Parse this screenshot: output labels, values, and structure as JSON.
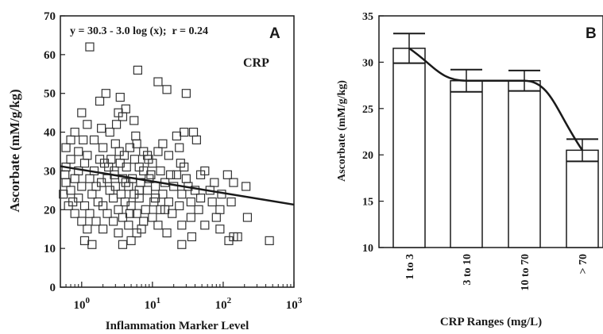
{
  "chart_data": [
    {
      "panel_label": "A",
      "type": "scatter",
      "equation": "y = 30.3 - 3.0 log (x);  r = 0.24",
      "inset_label": "CRP",
      "xlabel": "Inflammation Marker Level",
      "ylabel": "Ascorbate (mM/g/kg)",
      "x_scale": "log",
      "xlim": [
        0.5,
        1000
      ],
      "ylim": [
        0,
        70
      ],
      "y_ticks": [
        "0",
        "10",
        "20",
        "30",
        "40",
        "50",
        "60",
        "70"
      ],
      "x_ticks": [
        {
          "base": "10",
          "exp": "0",
          "value": 1
        },
        {
          "base": "10",
          "exp": "1",
          "value": 10
        },
        {
          "base": "10",
          "exp": "2",
          "value": 100
        },
        {
          "base": "10",
          "exp": "3",
          "value": 1000
        }
      ],
      "fit_line": {
        "intercept": 30.3,
        "slope_log10": -3.0,
        "x_range": [
          0.5,
          1000
        ]
      },
      "points": [
        [
          1.3,
          62
        ],
        [
          6.2,
          56
        ],
        [
          12,
          53
        ],
        [
          30,
          50
        ],
        [
          2.2,
          50
        ],
        [
          3.5,
          49
        ],
        [
          1.8,
          48
        ],
        [
          16,
          51
        ],
        [
          3.3,
          45
        ],
        [
          4.2,
          46
        ],
        [
          3.8,
          44
        ],
        [
          5.5,
          43
        ],
        [
          1.0,
          45
        ],
        [
          1.2,
          42
        ],
        [
          1.9,
          41
        ],
        [
          0.8,
          40
        ],
        [
          2.5,
          40
        ],
        [
          22,
          39
        ],
        [
          28,
          40
        ],
        [
          38,
          40
        ],
        [
          42,
          38
        ],
        [
          0.7,
          38
        ],
        [
          1.5,
          38
        ],
        [
          3.0,
          37
        ],
        [
          6,
          37
        ],
        [
          14,
          37
        ],
        [
          2.0,
          36
        ],
        [
          0.6,
          36
        ],
        [
          0.9,
          35
        ],
        [
          3.4,
          35
        ],
        [
          4.8,
          36
        ],
        [
          7.5,
          35
        ],
        [
          12,
          35
        ],
        [
          24,
          36
        ],
        [
          1.2,
          34
        ],
        [
          1.8,
          33
        ],
        [
          2.6,
          33
        ],
        [
          4.0,
          34
        ],
        [
          5.6,
          33
        ],
        [
          8.5,
          34
        ],
        [
          17,
          34
        ],
        [
          0.7,
          33
        ],
        [
          1.1,
          32
        ],
        [
          2.1,
          32
        ],
        [
          3.5,
          32
        ],
        [
          6.5,
          31
        ],
        [
          10,
          32
        ],
        [
          28,
          31
        ],
        [
          0.6,
          31
        ],
        [
          0.9,
          30
        ],
        [
          1.5,
          30
        ],
        [
          2.9,
          30
        ],
        [
          4.3,
          31
        ],
        [
          7.5,
          30
        ],
        [
          13,
          30
        ],
        [
          22,
          29
        ],
        [
          55,
          30
        ],
        [
          115,
          29
        ],
        [
          0.8,
          28
        ],
        [
          1.3,
          28
        ],
        [
          2.3,
          28
        ],
        [
          3.8,
          28
        ],
        [
          5.2,
          28
        ],
        [
          9,
          28
        ],
        [
          15,
          27
        ],
        [
          30,
          28
        ],
        [
          75,
          27
        ],
        [
          0.6,
          27
        ],
        [
          1.0,
          26
        ],
        [
          1.9,
          27
        ],
        [
          3.0,
          26
        ],
        [
          4.6,
          26
        ],
        [
          6.8,
          27
        ],
        [
          11,
          26
        ],
        [
          20,
          26
        ],
        [
          40,
          25
        ],
        [
          140,
          27
        ],
        [
          210,
          26
        ],
        [
          0.7,
          25
        ],
        [
          1.4,
          24
        ],
        [
          2.5,
          25
        ],
        [
          3.6,
          24
        ],
        [
          5.5,
          24
        ],
        [
          8.5,
          25
        ],
        [
          14,
          24
        ],
        [
          26,
          24
        ],
        [
          48,
          23
        ],
        [
          95,
          24
        ],
        [
          0.55,
          24
        ],
        [
          0.9,
          23
        ],
        [
          1.7,
          22
        ],
        [
          2.8,
          23
        ],
        [
          4.1,
          22
        ],
        [
          6.5,
          23
        ],
        [
          10.5,
          22
        ],
        [
          17,
          22
        ],
        [
          35,
          22
        ],
        [
          70,
          22
        ],
        [
          130,
          22
        ],
        [
          0.65,
          21
        ],
        [
          1.1,
          21
        ],
        [
          2.0,
          21
        ],
        [
          3.3,
          20
        ],
        [
          5.0,
          21
        ],
        [
          8,
          20
        ],
        [
          13,
          20
        ],
        [
          24,
          21
        ],
        [
          45,
          20
        ],
        [
          90,
          20
        ],
        [
          0.8,
          19
        ],
        [
          1.3,
          19
        ],
        [
          2.3,
          19
        ],
        [
          3.8,
          18
        ],
        [
          6,
          19
        ],
        [
          10,
          18
        ],
        [
          19,
          19
        ],
        [
          35,
          18
        ],
        [
          80,
          18
        ],
        [
          220,
          18
        ],
        [
          1.0,
          17
        ],
        [
          1.6,
          17
        ],
        [
          2.8,
          17
        ],
        [
          4.6,
          16
        ],
        [
          7.5,
          17
        ],
        [
          12,
          16
        ],
        [
          26,
          16
        ],
        [
          55,
          16
        ],
        [
          90,
          15
        ],
        [
          1.2,
          15
        ],
        [
          2.0,
          15
        ],
        [
          3.3,
          14
        ],
        [
          6,
          14
        ],
        [
          16,
          14
        ],
        [
          36,
          13
        ],
        [
          140,
          13
        ],
        [
          1.1,
          12
        ],
        [
          1.4,
          11
        ],
        [
          5,
          12
        ],
        [
          3.8,
          11
        ],
        [
          26,
          11
        ],
        [
          120,
          12
        ],
        [
          160,
          13
        ],
        [
          450,
          12
        ],
        [
          4.2,
          27
        ],
        [
          2.9,
          29
        ],
        [
          9.5,
          29
        ],
        [
          18,
          29
        ],
        [
          1.6,
          26
        ],
        [
          6.5,
          25
        ],
        [
          0.75,
          22
        ],
        [
          4.8,
          19
        ],
        [
          11,
          23
        ],
        [
          32,
          26
        ],
        [
          65,
          25
        ],
        [
          2.4,
          31
        ],
        [
          8.8,
          33
        ],
        [
          1.05,
          38
        ],
        [
          5.8,
          39
        ],
        [
          3.1,
          42
        ],
        [
          25,
          32
        ],
        [
          48,
          29
        ],
        [
          0.58,
          29
        ],
        [
          15,
          20
        ],
        [
          7,
          15
        ]
      ]
    },
    {
      "panel_label": "B",
      "type": "bar",
      "xlabel": "CRP Ranges (mg/L)",
      "ylabel": "Ascorbate (mM/g/kg)",
      "ylim": [
        10,
        35
      ],
      "y_ticks": [
        "10",
        "15",
        "20",
        "25",
        "30",
        "35"
      ],
      "categories": [
        "1 to 3",
        "3 to 10",
        "10 to 70",
        "> 70"
      ],
      "values": [
        31.5,
        28.0,
        28.0,
        20.5
      ],
      "errors": [
        1.6,
        1.2,
        1.1,
        1.2
      ],
      "trend": "smooth curve through bar tops"
    }
  ]
}
